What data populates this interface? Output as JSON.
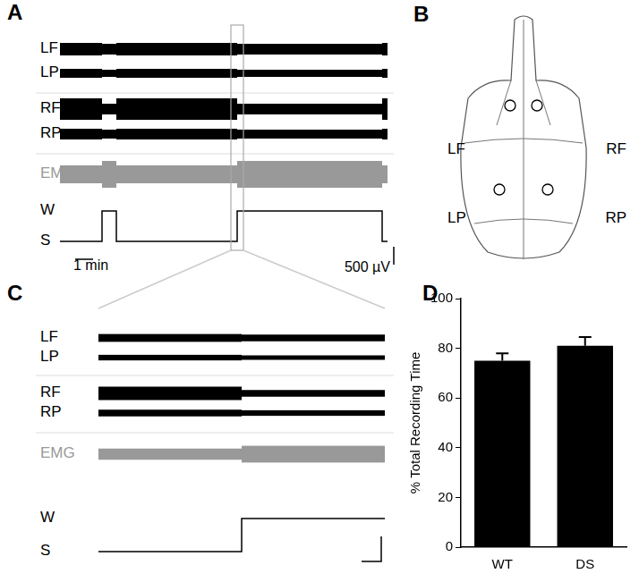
{
  "figure": {
    "panel_labels": [
      "A",
      "B",
      "C",
      "D"
    ],
    "recording": {
      "channels": [
        {
          "name": "LF",
          "sleep_amplitude": 175,
          "wake_amplitude": 150
        },
        {
          "name": "LP",
          "sleep_amplitude": 125,
          "wake_amplitude": 100
        },
        {
          "name": "RF",
          "sleep_amplitude": 300,
          "wake_amplitude": 150
        },
        {
          "name": "RP",
          "sleep_amplitude": 150,
          "wake_amplitude": 125
        }
      ],
      "emg": {
        "name": "EMG",
        "sleep_amplitude": 250,
        "wake_amplitude": 375
      },
      "state_labels": {
        "wake": "W",
        "sleep": "S"
      },
      "duration": 18.3,
      "wake_periods": [
        [
          2.35,
          3.15
        ],
        [
          9.9,
          18.0
        ]
      ],
      "zoom_window": [
        9.55,
        10.25
      ],
      "time_scale": {
        "value": 1,
        "label": "1 min"
      },
      "amplitude_scale": {
        "value": 500,
        "label": "500 µV"
      }
    }
  },
  "chart_data": {
    "type": "bar",
    "y_label": "% Total Recording Time",
    "categories": [
      "WT",
      "DS"
    ],
    "values": [
      75,
      81
    ],
    "errors": [
      3,
      3.5
    ],
    "color": "#000000",
    "ylim": [
      0,
      100
    ],
    "yticks": [
      0,
      20,
      40,
      60,
      80,
      100
    ],
    "grid": false
  }
}
